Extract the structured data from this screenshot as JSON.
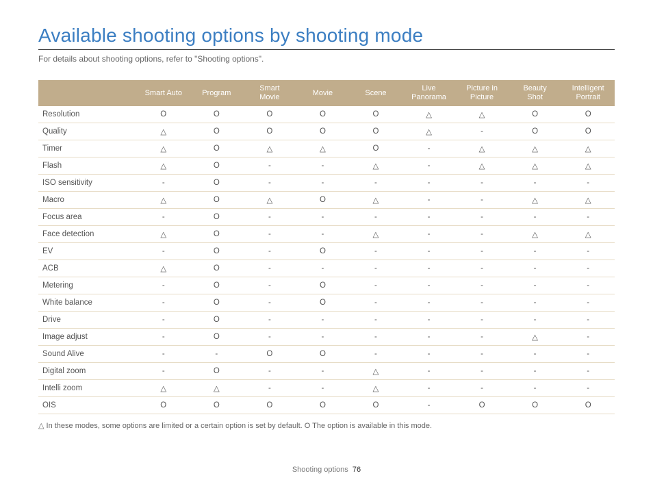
{
  "title": "Available shooting options by shooting mode",
  "subtitle": "For details about shooting options, refer to \"Shooting options\".",
  "legend": "△ In these modes, some options are limited or a certain option is set by default. O The option is available in this mode.",
  "footer_section": "Shooting options",
  "footer_page": "76",
  "colors": {
    "title": "#3b7ec2",
    "header_bg": "#c1ad8c",
    "header_fg": "#ffffff",
    "row_border": "#e7dcc6",
    "underline": "#333333"
  },
  "symbols": {
    "circle": "O",
    "triangle": "△",
    "dash": "-"
  },
  "columns": [
    "Smart Auto",
    "Program",
    "Smart\nMovie",
    "Movie",
    "Scene",
    "Live\nPanorama",
    "Picture in\nPicture",
    "Beauty\nShot",
    "Intelligent\nPortrait"
  ],
  "rows": [
    {
      "label": "Resolution",
      "cells": [
        "O",
        "O",
        "O",
        "O",
        "O",
        "△",
        "△",
        "O",
        "O"
      ]
    },
    {
      "label": "Quality",
      "cells": [
        "△",
        "O",
        "O",
        "O",
        "O",
        "△",
        "-",
        "O",
        "O"
      ]
    },
    {
      "label": "Timer",
      "cells": [
        "△",
        "O",
        "△",
        "△",
        "O",
        "-",
        "△",
        "△",
        "△"
      ]
    },
    {
      "label": "Flash",
      "cells": [
        "△",
        "O",
        "-",
        "-",
        "△",
        "-",
        "△",
        "△",
        "△"
      ]
    },
    {
      "label": "ISO sensitivity",
      "cells": [
        "-",
        "O",
        "-",
        "-",
        "-",
        "-",
        "-",
        "-",
        "-"
      ]
    },
    {
      "label": "Macro",
      "cells": [
        "△",
        "O",
        "△",
        "O",
        "△",
        "-",
        "-",
        "△",
        "△"
      ]
    },
    {
      "label": "Focus area",
      "cells": [
        "-",
        "O",
        "-",
        "-",
        "-",
        "-",
        "-",
        "-",
        "-"
      ]
    },
    {
      "label": "Face detection",
      "cells": [
        "△",
        "O",
        "-",
        "-",
        "△",
        "-",
        "-",
        "△",
        "△"
      ]
    },
    {
      "label": "EV",
      "cells": [
        "-",
        "O",
        "-",
        "O",
        "-",
        "-",
        "-",
        "-",
        "-"
      ]
    },
    {
      "label": "ACB",
      "cells": [
        "△",
        "O",
        "-",
        "-",
        "-",
        "-",
        "-",
        "-",
        "-"
      ]
    },
    {
      "label": "Metering",
      "cells": [
        "-",
        "O",
        "-",
        "O",
        "-",
        "-",
        "-",
        "-",
        "-"
      ]
    },
    {
      "label": "White balance",
      "cells": [
        "-",
        "O",
        "-",
        "O",
        "-",
        "-",
        "-",
        "-",
        "-"
      ]
    },
    {
      "label": "Drive",
      "cells": [
        "-",
        "O",
        "-",
        "-",
        "-",
        "-",
        "-",
        "-",
        "-"
      ]
    },
    {
      "label": "Image adjust",
      "cells": [
        "-",
        "O",
        "-",
        "-",
        "-",
        "-",
        "-",
        "△",
        "-"
      ]
    },
    {
      "label": "Sound Alive",
      "cells": [
        "-",
        "-",
        "O",
        "O",
        "-",
        "-",
        "-",
        "-",
        "-"
      ]
    },
    {
      "label": "Digital zoom",
      "cells": [
        "-",
        "O",
        "-",
        "-",
        "△",
        "-",
        "-",
        "-",
        "-"
      ]
    },
    {
      "label": "Intelli zoom",
      "cells": [
        "△",
        "△",
        "-",
        "-",
        "△",
        "-",
        "-",
        "-",
        "-"
      ]
    },
    {
      "label": "OIS",
      "cells": [
        "O",
        "O",
        "O",
        "O",
        "O",
        "-",
        "O",
        "O",
        "O"
      ]
    }
  ]
}
